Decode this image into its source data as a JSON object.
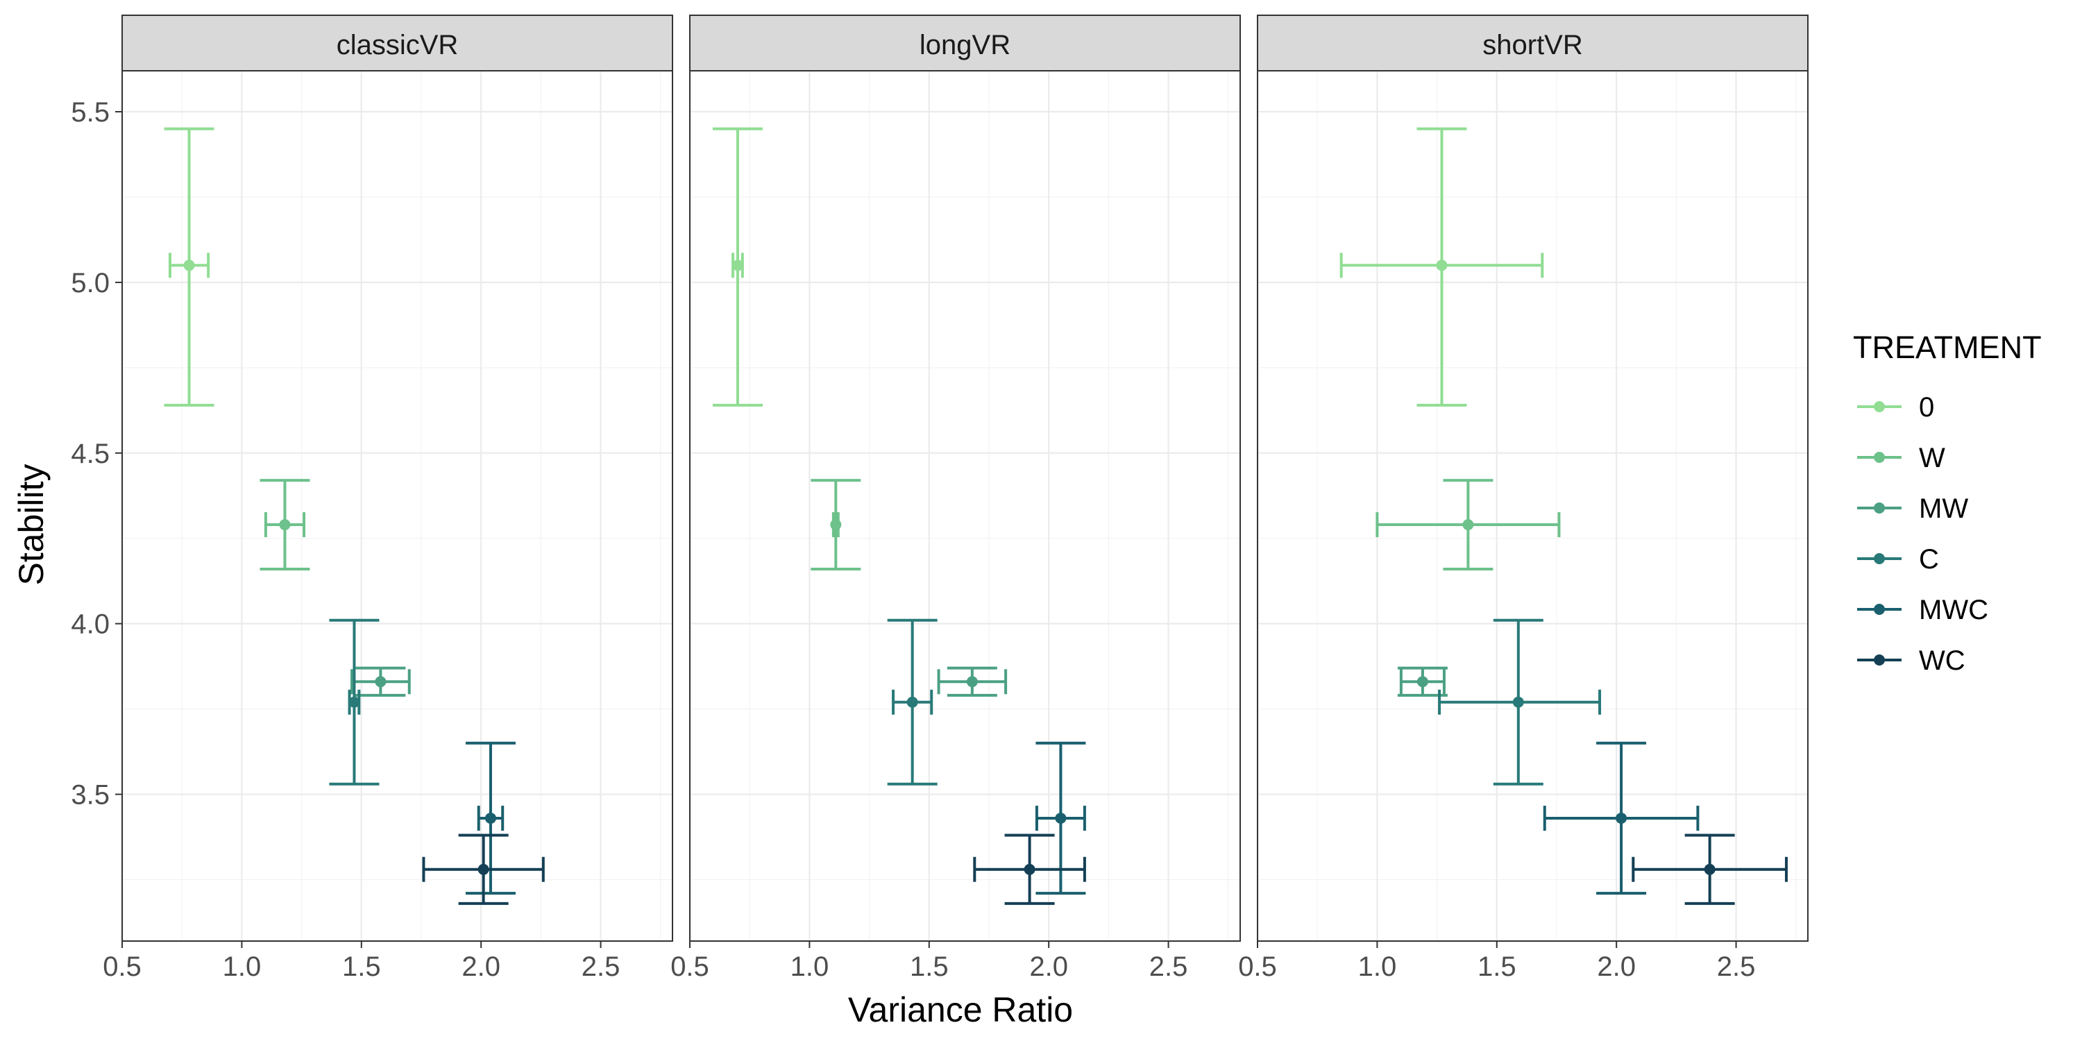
{
  "chart_data": {
    "type": "errorbar",
    "xlabel": "Variance Ratio",
    "ylabel": "Stability",
    "xlim": [
      0.5,
      2.8
    ],
    "ylim": [
      3.07,
      5.62
    ],
    "x_ticks": [
      0.5,
      1.0,
      1.5,
      2.0,
      2.5
    ],
    "y_ticks": [
      3.5,
      4.0,
      4.5,
      5.0,
      5.5
    ],
    "x_tick_labels": [
      "0.5",
      "1.0",
      "1.5",
      "2.0",
      "2.5"
    ],
    "y_tick_labels": [
      "3.5",
      "4.0",
      "4.5",
      "5.0",
      "5.5"
    ],
    "grid": true,
    "legend": {
      "title": "TREATMENT",
      "position": "right",
      "entries": [
        {
          "label": "0",
          "color": "#90dd93"
        },
        {
          "label": "W",
          "color": "#6dc18b"
        },
        {
          "label": "MW",
          "color": "#4ba083"
        },
        {
          "label": "C",
          "color": "#287a78"
        },
        {
          "label": "MWC",
          "color": "#1a5f6e"
        },
        {
          "label": "WC",
          "color": "#143f55"
        }
      ]
    },
    "panels": [
      {
        "title": "classicVR",
        "series": [
          {
            "name": "0",
            "x": 0.78,
            "xmin": 0.7,
            "xmax": 0.86,
            "y": 5.05,
            "ymin": 4.64,
            "ymax": 5.45
          },
          {
            "name": "W",
            "x": 1.18,
            "xmin": 1.1,
            "xmax": 1.26,
            "y": 4.29,
            "ymin": 4.16,
            "ymax": 4.42
          },
          {
            "name": "MW",
            "x": 1.58,
            "xmin": 1.46,
            "xmax": 1.7,
            "y": 3.83,
            "ymin": 3.79,
            "ymax": 3.87
          },
          {
            "name": "C",
            "x": 1.47,
            "xmin": 1.45,
            "xmax": 1.49,
            "y": 3.77,
            "ymin": 3.53,
            "ymax": 4.01
          },
          {
            "name": "MWC",
            "x": 2.04,
            "xmin": 1.99,
            "xmax": 2.09,
            "y": 3.43,
            "ymin": 3.21,
            "ymax": 3.65
          },
          {
            "name": "WC",
            "x": 2.01,
            "xmin": 1.76,
            "xmax": 2.26,
            "y": 3.28,
            "ymin": 3.18,
            "ymax": 3.38
          }
        ]
      },
      {
        "title": "longVR",
        "series": [
          {
            "name": "0",
            "x": 0.7,
            "xmin": 0.68,
            "xmax": 0.72,
            "y": 5.05,
            "ymin": 4.64,
            "ymax": 5.45
          },
          {
            "name": "W",
            "x": 1.11,
            "xmin": 1.1,
            "xmax": 1.12,
            "y": 4.29,
            "ymin": 4.16,
            "ymax": 4.42
          },
          {
            "name": "MW",
            "x": 1.68,
            "xmin": 1.54,
            "xmax": 1.82,
            "y": 3.83,
            "ymin": 3.79,
            "ymax": 3.87
          },
          {
            "name": "C",
            "x": 1.43,
            "xmin": 1.35,
            "xmax": 1.51,
            "y": 3.77,
            "ymin": 3.53,
            "ymax": 4.01
          },
          {
            "name": "MWC",
            "x": 2.05,
            "xmin": 1.95,
            "xmax": 2.15,
            "y": 3.43,
            "ymin": 3.21,
            "ymax": 3.65
          },
          {
            "name": "WC",
            "x": 1.92,
            "xmin": 1.69,
            "xmax": 2.15,
            "y": 3.28,
            "ymin": 3.18,
            "ymax": 3.38
          }
        ]
      },
      {
        "title": "shortVR",
        "series": [
          {
            "name": "0",
            "x": 1.27,
            "xmin": 0.85,
            "xmax": 1.69,
            "y": 5.05,
            "ymin": 4.64,
            "ymax": 5.45
          },
          {
            "name": "W",
            "x": 1.38,
            "xmin": 1.0,
            "xmax": 1.76,
            "y": 4.29,
            "ymin": 4.16,
            "ymax": 4.42
          },
          {
            "name": "MW",
            "x": 1.19,
            "xmin": 1.1,
            "xmax": 1.28,
            "y": 3.83,
            "ymin": 3.79,
            "ymax": 3.87
          },
          {
            "name": "C",
            "x": 1.59,
            "xmin": 1.26,
            "xmax": 1.93,
            "y": 3.77,
            "ymin": 3.53,
            "ymax": 4.01
          },
          {
            "name": "MWC",
            "x": 2.02,
            "xmin": 1.7,
            "xmax": 2.34,
            "y": 3.43,
            "ymin": 3.21,
            "ymax": 3.65
          },
          {
            "name": "WC",
            "x": 2.39,
            "xmin": 2.07,
            "xmax": 2.71,
            "y": 3.28,
            "ymin": 3.18,
            "ymax": 3.38
          }
        ]
      }
    ]
  }
}
